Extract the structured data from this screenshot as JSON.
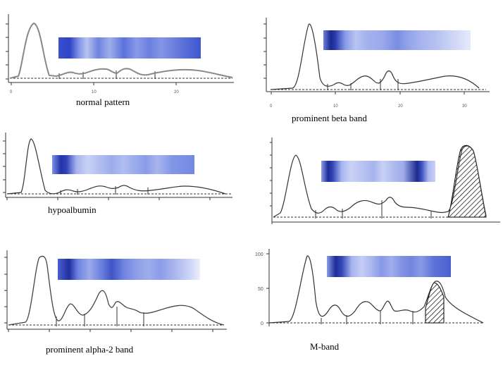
{
  "panels": [
    {
      "id": "normal",
      "caption": "normal pattern",
      "x_ticks": [
        "0",
        "10",
        "20"
      ],
      "y_ticks": []
    },
    {
      "id": "beta",
      "caption": "prominent beta band",
      "x_ticks": [
        "0",
        "10",
        "20",
        "30"
      ],
      "y_ticks": []
    },
    {
      "id": "hypo",
      "caption": "hypoalbumin",
      "x_ticks": [],
      "y_ticks": []
    },
    {
      "id": "gamma",
      "caption": "",
      "x_ticks": [],
      "y_ticks": []
    },
    {
      "id": "alpha2",
      "caption": "prominent alpha-2 band",
      "x_ticks": [],
      "y_ticks": []
    },
    {
      "id": "mband",
      "caption": "M-band",
      "x_ticks": [],
      "y_ticks": [
        "100",
        "50",
        "0"
      ]
    }
  ],
  "colors": {
    "trace": "#555555",
    "gel_dark": "#1a2a8c",
    "gel_mid": "#6a7fe0",
    "gel_light": "#eef0fb"
  }
}
